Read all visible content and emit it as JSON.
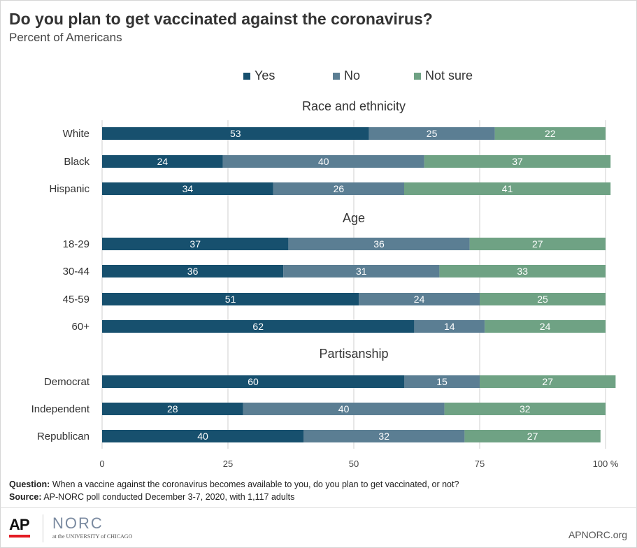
{
  "title": "Do you plan to get vaccinated against the coronavirus?",
  "subtitle": "Percent of Americans",
  "legend": [
    {
      "label": "Yes",
      "color": "#17506e"
    },
    {
      "label": "No",
      "color": "#5b7e93"
    },
    {
      "label": "Not sure",
      "color": "#6fa284"
    }
  ],
  "chart_data": {
    "type": "bar",
    "orientation": "horizontal",
    "stacked": true,
    "xlim": [
      0,
      100
    ],
    "x_ticks": [
      "0",
      "25",
      "50",
      "75",
      "100 %"
    ],
    "series_names": [
      "Yes",
      "No",
      "Not sure"
    ],
    "colors": [
      "#17506e",
      "#5b7e93",
      "#6fa284"
    ],
    "groups": [
      {
        "name": "Race and ethnicity",
        "rows": [
          {
            "label": "White",
            "values": [
              53,
              25,
              22
            ]
          },
          {
            "label": "Black",
            "values": [
              24,
              40,
              37
            ]
          },
          {
            "label": "Hispanic",
            "values": [
              34,
              26,
              41
            ]
          }
        ]
      },
      {
        "name": "Age",
        "rows": [
          {
            "label": "18-29",
            "values": [
              37,
              36,
              27
            ]
          },
          {
            "label": "30-44",
            "values": [
              36,
              31,
              33
            ]
          },
          {
            "label": "45-59",
            "values": [
              51,
              24,
              25
            ]
          },
          {
            "label": "60+",
            "values": [
              62,
              14,
              24
            ]
          }
        ]
      },
      {
        "name": "Partisanship",
        "rows": [
          {
            "label": "Democrat",
            "values": [
              60,
              15,
              27
            ]
          },
          {
            "label": "Independent",
            "values": [
              28,
              40,
              32
            ]
          },
          {
            "label": "Republican",
            "values": [
              40,
              32,
              27
            ]
          }
        ]
      }
    ],
    "grid": true
  },
  "notes": {
    "question_label": "Question:",
    "question_text": "When a vaccine against the coronavirus becomes available to you, do you plan to get vaccinated, or not?",
    "source_label": "Source:",
    "source_text": "AP-NORC poll conducted December 3-7, 2020,  with 1,117 adults"
  },
  "footer": {
    "ap_logo": "AP",
    "norc_logo": "NORC",
    "norc_sub": "at the UNIVERSITY of CHICAGO",
    "site": "APNORC.org"
  }
}
